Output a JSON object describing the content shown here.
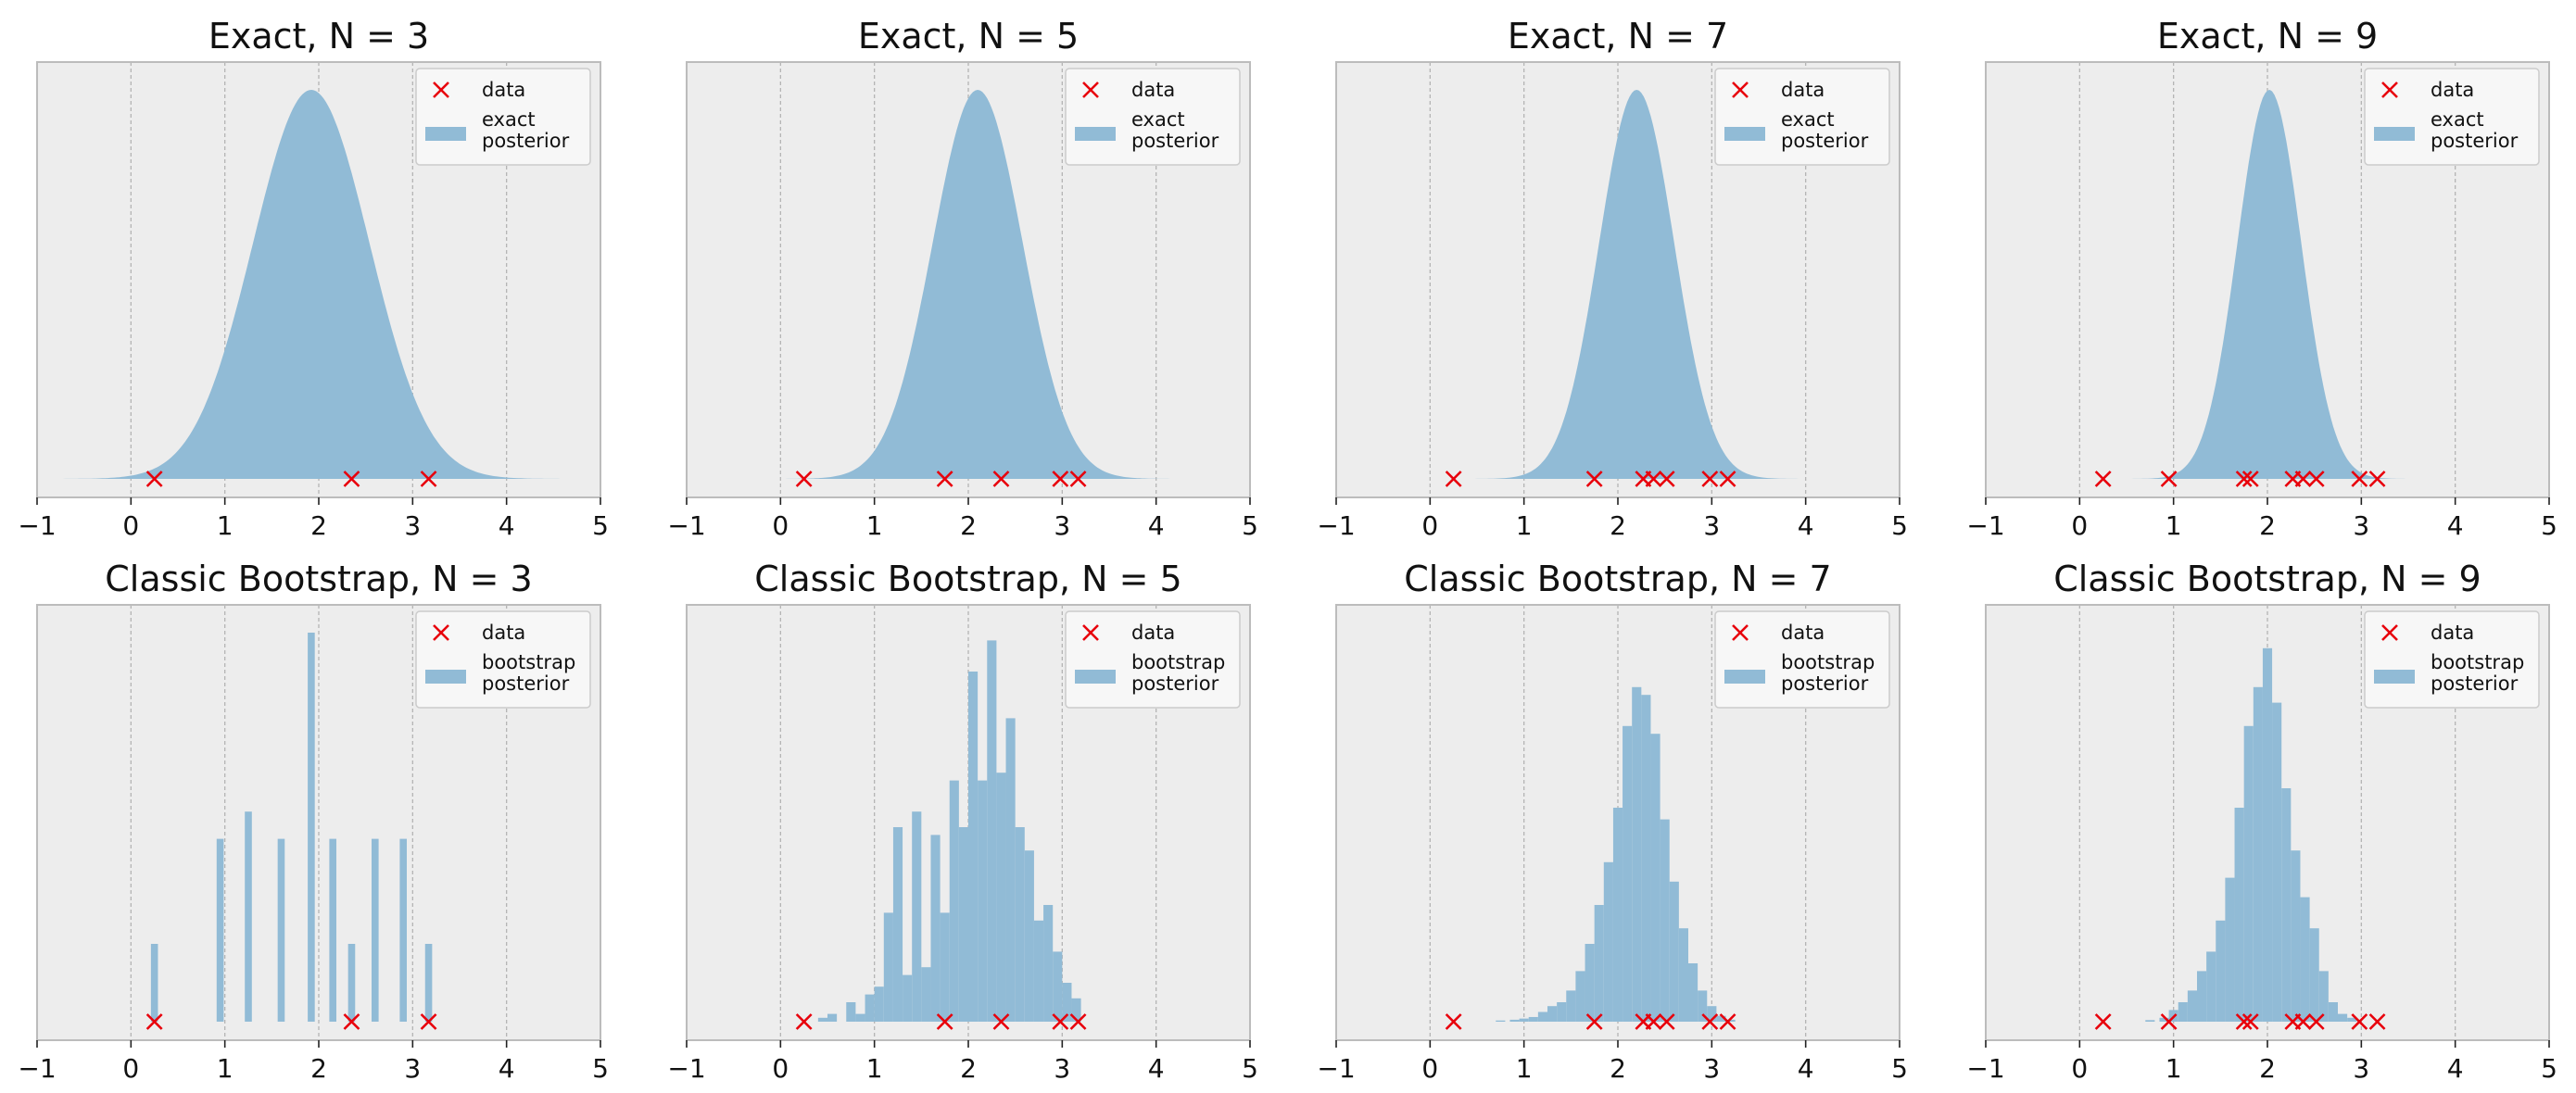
{
  "chart_data": [
    {
      "type": "area",
      "title": "Exact, N = 3",
      "xlim": [
        -1,
        5
      ],
      "xticks": [
        "−1",
        "0",
        "1",
        "2",
        "3",
        "4",
        "5"
      ],
      "grid": "vertical",
      "legend": "top-right",
      "legend_entries": [
        {
          "marker": "x",
          "lines": [
            "data"
          ]
        },
        {
          "marker": "patch",
          "lines": [
            "exact",
            "posterior"
          ]
        }
      ],
      "data_x": [
        0.25,
        2.35,
        3.17
      ],
      "posterior": {
        "mean": 1.92,
        "sd": 0.62
      }
    },
    {
      "type": "area",
      "title": "Exact, N = 5",
      "xlim": [
        -1,
        5
      ],
      "xticks": [
        "−1",
        "0",
        "1",
        "2",
        "3",
        "4",
        "5"
      ],
      "grid": "vertical",
      "legend": "top-right",
      "legend_entries": [
        {
          "marker": "x",
          "lines": [
            "data"
          ]
        },
        {
          "marker": "patch",
          "lines": [
            "exact",
            "posterior"
          ]
        }
      ],
      "data_x": [
        0.25,
        1.75,
        2.35,
        2.98,
        3.17
      ],
      "posterior": {
        "mean": 2.1,
        "sd": 0.48
      }
    },
    {
      "type": "area",
      "title": "Exact, N = 7",
      "xlim": [
        -1,
        5
      ],
      "xticks": [
        "−1",
        "0",
        "1",
        "2",
        "3",
        "4",
        "5"
      ],
      "grid": "vertical",
      "legend": "top-right",
      "legend_entries": [
        {
          "marker": "x",
          "lines": [
            "data"
          ]
        },
        {
          "marker": "patch",
          "lines": [
            "exact",
            "posterior"
          ]
        }
      ],
      "data_x": [
        0.25,
        1.75,
        2.27,
        2.38,
        2.52,
        2.98,
        3.17
      ],
      "posterior": {
        "mean": 2.2,
        "sd": 0.4
      }
    },
    {
      "type": "area",
      "title": "Exact, N = 9",
      "xlim": [
        -1,
        5
      ],
      "xticks": [
        "−1",
        "0",
        "1",
        "2",
        "3",
        "4",
        "5"
      ],
      "grid": "vertical",
      "legend": "top-right",
      "legend_entries": [
        {
          "marker": "x",
          "lines": [
            "data"
          ]
        },
        {
          "marker": "patch",
          "lines": [
            "exact",
            "posterior"
          ]
        }
      ],
      "data_x": [
        0.25,
        0.95,
        1.75,
        1.82,
        2.27,
        2.38,
        2.52,
        2.98,
        3.17
      ],
      "posterior": {
        "mean": 2.02,
        "sd": 0.34
      }
    },
    {
      "type": "bar",
      "title": "Classic Bootstrap, N = 3",
      "xlim": [
        -1,
        5
      ],
      "xticks": [
        "−1",
        "0",
        "1",
        "2",
        "3",
        "4",
        "5"
      ],
      "grid": "vertical",
      "legend": "top-right",
      "legend_entries": [
        {
          "marker": "x",
          "lines": [
            "data"
          ]
        },
        {
          "marker": "patch",
          "lines": [
            "bootstrap",
            "posterior"
          ]
        }
      ],
      "data_x": [
        0.25,
        2.35,
        3.17
      ],
      "bins": [
        [
          0.25,
          0.2
        ],
        [
          0.95,
          0.47
        ],
        [
          1.25,
          0.54
        ],
        [
          1.6,
          0.47
        ],
        [
          1.92,
          1.0
        ],
        [
          2.15,
          0.47
        ],
        [
          2.35,
          0.2
        ],
        [
          2.6,
          0.47
        ],
        [
          2.9,
          0.47
        ],
        [
          3.17,
          0.2
        ]
      ]
    },
    {
      "type": "bar",
      "title": "Classic Bootstrap, N = 5",
      "xlim": [
        -1,
        5
      ],
      "xticks": [
        "−1",
        "0",
        "1",
        "2",
        "3",
        "4",
        "5"
      ],
      "grid": "vertical",
      "legend": "top-right",
      "legend_entries": [
        {
          "marker": "x",
          "lines": [
            "data"
          ]
        },
        {
          "marker": "patch",
          "lines": [
            "bootstrap",
            "posterior"
          ]
        }
      ],
      "data_x": [
        0.25,
        1.75,
        2.35,
        2.98,
        3.17
      ],
      "bins": [
        [
          0.45,
          0.01
        ],
        [
          0.55,
          0.02
        ],
        [
          0.75,
          0.05
        ],
        [
          0.85,
          0.02
        ],
        [
          0.95,
          0.07
        ],
        [
          1.05,
          0.09
        ],
        [
          1.15,
          0.28
        ],
        [
          1.25,
          0.5
        ],
        [
          1.35,
          0.12
        ],
        [
          1.45,
          0.54
        ],
        [
          1.55,
          0.14
        ],
        [
          1.65,
          0.48
        ],
        [
          1.75,
          0.28
        ],
        [
          1.85,
          0.62
        ],
        [
          1.95,
          0.5
        ],
        [
          2.05,
          0.9
        ],
        [
          2.15,
          0.62
        ],
        [
          2.25,
          0.98
        ],
        [
          2.35,
          0.64
        ],
        [
          2.45,
          0.78
        ],
        [
          2.55,
          0.5
        ],
        [
          2.65,
          0.44
        ],
        [
          2.75,
          0.26
        ],
        [
          2.85,
          0.3
        ],
        [
          2.95,
          0.18
        ],
        [
          3.05,
          0.1
        ],
        [
          3.15,
          0.06
        ]
      ]
    },
    {
      "type": "bar",
      "title": "Classic Bootstrap, N = 7",
      "xlim": [
        -1,
        5
      ],
      "xticks": [
        "−1",
        "0",
        "1",
        "2",
        "3",
        "4",
        "5"
      ],
      "grid": "vertical",
      "legend": "top-right",
      "legend_entries": [
        {
          "marker": "x",
          "lines": [
            "data"
          ]
        },
        {
          "marker": "patch",
          "lines": [
            "bootstrap",
            "posterior"
          ]
        }
      ],
      "data_x": [
        0.25,
        1.75,
        2.27,
        2.38,
        2.52,
        2.98,
        3.17
      ],
      "bins": [
        [
          0.75,
          0.003
        ],
        [
          0.9,
          0.005
        ],
        [
          1.0,
          0.008
        ],
        [
          1.1,
          0.012
        ],
        [
          1.2,
          0.025
        ],
        [
          1.3,
          0.04
        ],
        [
          1.4,
          0.05
        ],
        [
          1.5,
          0.08
        ],
        [
          1.6,
          0.13
        ],
        [
          1.7,
          0.2
        ],
        [
          1.8,
          0.3
        ],
        [
          1.9,
          0.41
        ],
        [
          2.0,
          0.55
        ],
        [
          2.1,
          0.76
        ],
        [
          2.2,
          0.86
        ],
        [
          2.3,
          0.84
        ],
        [
          2.4,
          0.74
        ],
        [
          2.5,
          0.52
        ],
        [
          2.6,
          0.36
        ],
        [
          2.7,
          0.24
        ],
        [
          2.8,
          0.15
        ],
        [
          2.9,
          0.08
        ],
        [
          3.0,
          0.04
        ],
        [
          3.1,
          0.015
        ],
        [
          3.2,
          0.005
        ]
      ]
    },
    {
      "type": "bar",
      "title": "Classic Bootstrap, N = 9",
      "xlim": [
        -1,
        5
      ],
      "xticks": [
        "−1",
        "0",
        "1",
        "2",
        "3",
        "4",
        "5"
      ],
      "grid": "vertical",
      "legend": "top-right",
      "legend_entries": [
        {
          "marker": "x",
          "lines": [
            "data"
          ]
        },
        {
          "marker": "patch",
          "lines": [
            "bootstrap",
            "posterior"
          ]
        }
      ],
      "data_x": [
        0.25,
        0.95,
        1.75,
        1.82,
        2.27,
        2.38,
        2.52,
        2.98,
        3.17
      ],
      "bins": [
        [
          0.75,
          0.004
        ],
        [
          0.9,
          0.01
        ],
        [
          1.0,
          0.03
        ],
        [
          1.1,
          0.05
        ],
        [
          1.2,
          0.08
        ],
        [
          1.3,
          0.13
        ],
        [
          1.4,
          0.18
        ],
        [
          1.5,
          0.26
        ],
        [
          1.6,
          0.37
        ],
        [
          1.7,
          0.55
        ],
        [
          1.8,
          0.76
        ],
        [
          1.9,
          0.86
        ],
        [
          2.0,
          0.96
        ],
        [
          2.1,
          0.82
        ],
        [
          2.2,
          0.6
        ],
        [
          2.3,
          0.44
        ],
        [
          2.4,
          0.32
        ],
        [
          2.5,
          0.24
        ],
        [
          2.6,
          0.13
        ],
        [
          2.7,
          0.05
        ],
        [
          2.8,
          0.02
        ],
        [
          2.9,
          0.01
        ]
      ]
    }
  ]
}
